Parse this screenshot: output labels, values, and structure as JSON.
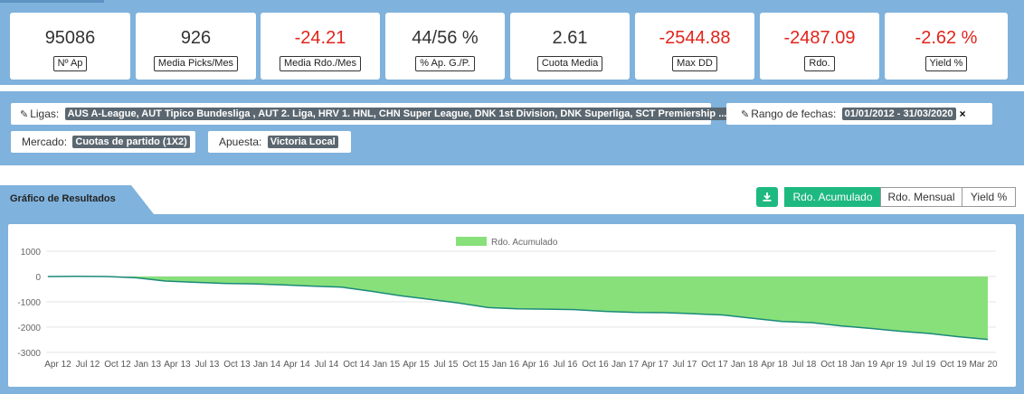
{
  "stats": [
    {
      "value": "95086",
      "label": "Nº Ap",
      "negative": false
    },
    {
      "value": "926",
      "label": "Media Picks/Mes",
      "negative": false
    },
    {
      "value": "-24.21",
      "label": "Media Rdo./Mes",
      "negative": true
    },
    {
      "value": "44/56 %",
      "label": "% Ap. G./P.",
      "negative": false
    },
    {
      "value": "2.61",
      "label": "Cuota Media",
      "negative": false
    },
    {
      "value": "-2544.88",
      "label": "Max DD",
      "negative": true
    },
    {
      "value": "-2487.09",
      "label": "Rdo.",
      "negative": true
    },
    {
      "value": "-2.62 %",
      "label": "Yield %",
      "negative": true
    }
  ],
  "filters": {
    "ligas_label": "Ligas:",
    "ligas_value": "AUS A-League, AUT Tipico Bundesliga , AUT 2. Liga, HRV 1. HNL, CHN Super League, DNK 1st Division, DNK Superliga, SCT Premiership ...",
    "fechas_label": "Rango de fechas:",
    "fechas_value": "01/01/2012 - 31/03/2020",
    "mercado_label": "Mercado:",
    "mercado_value": "Cuotas de partido (1X2)",
    "apuesta_label": "Apuesta:",
    "apuesta_value": "Victoria Local",
    "remove_symbol": "×"
  },
  "section": {
    "title": "Gráfico de Resultados",
    "buttons": [
      "Rdo. Acumulado",
      "Rdo. Mensual",
      "Yield %"
    ],
    "active_button": "Rdo. Acumulado",
    "download_icon": "download-icon"
  },
  "colors": {
    "accent": "#1eb980",
    "panel": "#7fb2dc",
    "negative": "#e0241b",
    "area_fill": "#88e07a",
    "area_line": "#1a8a7a"
  },
  "chart_data": {
    "type": "area",
    "legend": "Rdo. Acumulado",
    "legend_position": "top-center",
    "grid": true,
    "ylim": [
      -3000,
      1000
    ],
    "yticks": [
      1000,
      0,
      -1000,
      -2000,
      -3000
    ],
    "xticks": [
      "Apr 12",
      "Jul 12",
      "Oct 12",
      "Jan 13",
      "Apr 13",
      "Jul 13",
      "Oct 13",
      "Jan 14",
      "Apr 14",
      "Jul 14",
      "Oct 14",
      "Jan 15",
      "Apr 15",
      "Jul 15",
      "Oct 15",
      "Jan 16",
      "Apr 16",
      "Jul 16",
      "Oct 16",
      "Jan 17",
      "Apr 17",
      "Jul 17",
      "Oct 17",
      "Jan 18",
      "Apr 18",
      "Jul 18",
      "Oct 18",
      "Jan 19",
      "Apr 19",
      "Jul 19",
      "Oct 19",
      "Mar 20"
    ],
    "series": [
      {
        "name": "Rdo. Acumulado",
        "x": [
          "Jan 12",
          "Apr 12",
          "Jul 12",
          "Oct 12",
          "Jan 13",
          "Apr 13",
          "Jul 13",
          "Oct 13",
          "Jan 14",
          "Apr 14",
          "Jul 14",
          "Oct 14",
          "Jan 15",
          "Apr 15",
          "Jul 15",
          "Oct 15",
          "Jan 16",
          "Apr 16",
          "Jul 16",
          "Oct 16",
          "Jan 17",
          "Apr 17",
          "Jul 17",
          "Oct 17",
          "Jan 18",
          "Apr 18",
          "Jul 18",
          "Oct 18",
          "Jan 19",
          "Apr 19",
          "Jul 19",
          "Oct 19",
          "Mar 20"
        ],
        "values": [
          0,
          10,
          0,
          -50,
          -180,
          -230,
          -270,
          -290,
          -330,
          -380,
          -420,
          -580,
          -760,
          -900,
          -1050,
          -1230,
          -1280,
          -1290,
          -1310,
          -1380,
          -1420,
          -1430,
          -1470,
          -1520,
          -1650,
          -1780,
          -1820,
          -1950,
          -2050,
          -2160,
          -2250,
          -2380,
          -2487
        ]
      }
    ]
  }
}
